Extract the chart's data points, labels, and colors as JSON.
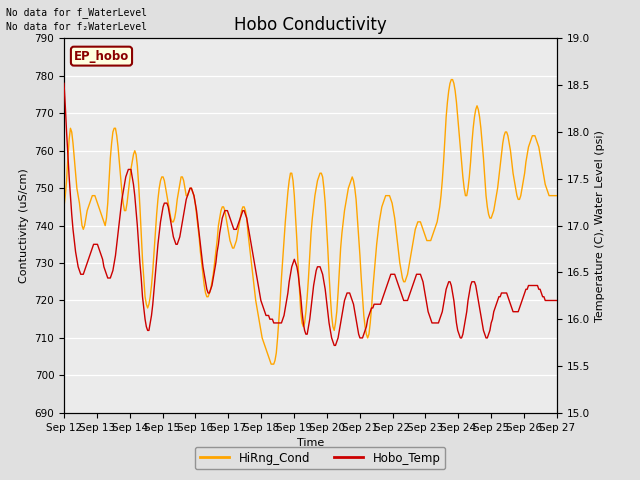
{
  "title": "Hobo Conductivity",
  "xlabel": "Time",
  "ylabel_left": "Contuctivity (uS/cm)",
  "ylabel_right": "Temperature (C), Water Level (psi)",
  "no_data_text1": "No data for f_WaterLevel",
  "no_data_text2": "No data for f₂WaterLevel",
  "legend_label1": "HiRng_Cond",
  "legend_label2": "Hobo_Temp",
  "box_label": "EP_hobo",
  "ylim_left": [
    690,
    790
  ],
  "ylim_right": [
    15.0,
    19.0
  ],
  "yticks_left": [
    690,
    700,
    710,
    720,
    730,
    740,
    750,
    760,
    770,
    780,
    790
  ],
  "yticks_right": [
    15.0,
    15.5,
    16.0,
    16.5,
    17.0,
    17.5,
    18.0,
    18.5,
    19.0
  ],
  "xtick_labels": [
    "Sep 12",
    "Sep 13",
    "Sep 14",
    "Sep 15",
    "Sep 16",
    "Sep 17",
    "Sep 18",
    "Sep 19",
    "Sep 20",
    "Sep 21",
    "Sep 22",
    "Sep 23",
    "Sep 24",
    "Sep 25",
    "Sep 26",
    "Sep 27"
  ],
  "color_cond": "#FFA500",
  "color_temp": "#CC0000",
  "background_color": "#E0E0E0",
  "plot_bg_color": "#EBEBEB",
  "title_fontsize": 12,
  "label_fontsize": 8,
  "tick_fontsize": 7.5,
  "legend_fontsize": 8.5,
  "cond_data": [
    745,
    748,
    752,
    758,
    763,
    766,
    765,
    762,
    758,
    754,
    750,
    748,
    746,
    743,
    740,
    739,
    740,
    742,
    744,
    745,
    746,
    747,
    748,
    748,
    748,
    747,
    746,
    745,
    744,
    743,
    742,
    741,
    740,
    742,
    746,
    752,
    758,
    762,
    765,
    766,
    766,
    764,
    761,
    757,
    753,
    749,
    746,
    744,
    744,
    746,
    749,
    752,
    755,
    757,
    759,
    760,
    759,
    756,
    751,
    745,
    738,
    731,
    726,
    721,
    719,
    718,
    719,
    721,
    724,
    728,
    733,
    738,
    743,
    747,
    750,
    752,
    753,
    753,
    752,
    750,
    748,
    746,
    744,
    742,
    741,
    741,
    742,
    744,
    747,
    749,
    751,
    753,
    753,
    752,
    750,
    748,
    748,
    749,
    750,
    750,
    749,
    748,
    746,
    743,
    740,
    737,
    733,
    730,
    727,
    724,
    722,
    721,
    721,
    722,
    723,
    725,
    727,
    730,
    733,
    736,
    740,
    742,
    744,
    745,
    745,
    744,
    742,
    740,
    738,
    736,
    735,
    734,
    734,
    735,
    736,
    738,
    740,
    742,
    744,
    745,
    745,
    744,
    742,
    738,
    735,
    732,
    729,
    726,
    723,
    720,
    718,
    716,
    714,
    712,
    710,
    709,
    708,
    707,
    706,
    705,
    704,
    703,
    703,
    703,
    704,
    706,
    710,
    715,
    720,
    726,
    731,
    736,
    741,
    745,
    749,
    752,
    754,
    754,
    752,
    748,
    742,
    736,
    729,
    723,
    717,
    714,
    713,
    714,
    717,
    721,
    726,
    732,
    738,
    742,
    745,
    748,
    750,
    752,
    753,
    754,
    754,
    753,
    750,
    746,
    740,
    734,
    727,
    721,
    716,
    713,
    712,
    714,
    717,
    722,
    728,
    734,
    738,
    741,
    744,
    746,
    748,
    750,
    751,
    752,
    753,
    752,
    750,
    747,
    742,
    737,
    732,
    726,
    721,
    716,
    713,
    711,
    710,
    711,
    714,
    718,
    723,
    727,
    731,
    735,
    738,
    741,
    743,
    745,
    746,
    747,
    748,
    748,
    748,
    748,
    747,
    746,
    744,
    742,
    739,
    736,
    733,
    730,
    728,
    726,
    725,
    725,
    726,
    727,
    729,
    731,
    733,
    735,
    737,
    739,
    740,
    741,
    741,
    741,
    740,
    739,
    738,
    737,
    736,
    736,
    736,
    736,
    737,
    738,
    739,
    740,
    741,
    743,
    745,
    748,
    752,
    757,
    763,
    769,
    773,
    776,
    778,
    779,
    779,
    778,
    776,
    773,
    769,
    765,
    761,
    757,
    753,
    750,
    748,
    748,
    750,
    753,
    757,
    762,
    766,
    769,
    771,
    772,
    771,
    769,
    766,
    762,
    758,
    753,
    748,
    745,
    743,
    742,
    742,
    743,
    744,
    746,
    748,
    750,
    753,
    756,
    759,
    762,
    764,
    765,
    765,
    764,
    762,
    760,
    757,
    754,
    752,
    750,
    748,
    747,
    747,
    748,
    750,
    752,
    754,
    757,
    759,
    761,
    762,
    763,
    764,
    764,
    764,
    763,
    762,
    761,
    759,
    757,
    755,
    753,
    751,
    750,
    749,
    748,
    748,
    748,
    748,
    748,
    748,
    748
  ],
  "temp_data": [
    778,
    772,
    765,
    759,
    753,
    748,
    743,
    739,
    736,
    733,
    731,
    729,
    728,
    727,
    727,
    727,
    728,
    729,
    730,
    731,
    732,
    733,
    734,
    735,
    735,
    735,
    735,
    734,
    733,
    732,
    731,
    729,
    728,
    727,
    726,
    726,
    726,
    727,
    728,
    730,
    732,
    735,
    738,
    741,
    744,
    747,
    749,
    751,
    753,
    754,
    755,
    755,
    755,
    753,
    751,
    748,
    744,
    740,
    735,
    730,
    726,
    721,
    718,
    715,
    713,
    712,
    712,
    714,
    716,
    719,
    723,
    727,
    731,
    735,
    738,
    741,
    743,
    745,
    746,
    746,
    746,
    745,
    743,
    741,
    739,
    737,
    736,
    735,
    735,
    736,
    737,
    739,
    741,
    743,
    745,
    747,
    748,
    749,
    750,
    750,
    749,
    748,
    746,
    744,
    741,
    738,
    735,
    732,
    729,
    727,
    725,
    723,
    722,
    722,
    723,
    724,
    726,
    728,
    730,
    733,
    735,
    738,
    740,
    742,
    743,
    744,
    744,
    744,
    743,
    742,
    741,
    740,
    739,
    739,
    739,
    740,
    741,
    742,
    743,
    744,
    744,
    743,
    742,
    740,
    738,
    736,
    734,
    732,
    730,
    728,
    726,
    724,
    722,
    720,
    719,
    718,
    717,
    716,
    716,
    716,
    715,
    715,
    715,
    714,
    714,
    714,
    714,
    714,
    714,
    714,
    715,
    716,
    718,
    720,
    722,
    725,
    727,
    729,
    730,
    731,
    730,
    729,
    727,
    724,
    721,
    717,
    714,
    712,
    711,
    711,
    713,
    715,
    718,
    721,
    724,
    726,
    728,
    729,
    729,
    729,
    728,
    727,
    725,
    723,
    720,
    717,
    714,
    712,
    710,
    709,
    708,
    708,
    709,
    710,
    712,
    714,
    716,
    718,
    720,
    721,
    722,
    722,
    722,
    721,
    720,
    719,
    717,
    715,
    713,
    711,
    710,
    710,
    710,
    711,
    712,
    713,
    715,
    716,
    717,
    718,
    718,
    719,
    719,
    719,
    719,
    719,
    719,
    720,
    721,
    722,
    723,
    724,
    725,
    726,
    727,
    727,
    727,
    727,
    726,
    725,
    724,
    723,
    722,
    721,
    720,
    720,
    720,
    720,
    721,
    722,
    723,
    724,
    725,
    726,
    727,
    727,
    727,
    727,
    726,
    725,
    723,
    721,
    719,
    717,
    716,
    715,
    714,
    714,
    714,
    714,
    714,
    714,
    715,
    716,
    717,
    719,
    721,
    723,
    724,
    725,
    725,
    724,
    722,
    720,
    717,
    714,
    712,
    711,
    710,
    710,
    711,
    713,
    715,
    717,
    720,
    722,
    724,
    725,
    725,
    725,
    724,
    722,
    720,
    718,
    716,
    714,
    712,
    711,
    710,
    710,
    711,
    712,
    714,
    715,
    717,
    718,
    719,
    720,
    721,
    721,
    722,
    722,
    722,
    722,
    722,
    721,
    720,
    719,
    718,
    717,
    717,
    717,
    717,
    717,
    718,
    719,
    720,
    721,
    722,
    723,
    723,
    724,
    724,
    724,
    724,
    724,
    724,
    724,
    724,
    723,
    723,
    722,
    721,
    721,
    720,
    720,
    720,
    720,
    720,
    720,
    720,
    720,
    720,
    720
  ]
}
